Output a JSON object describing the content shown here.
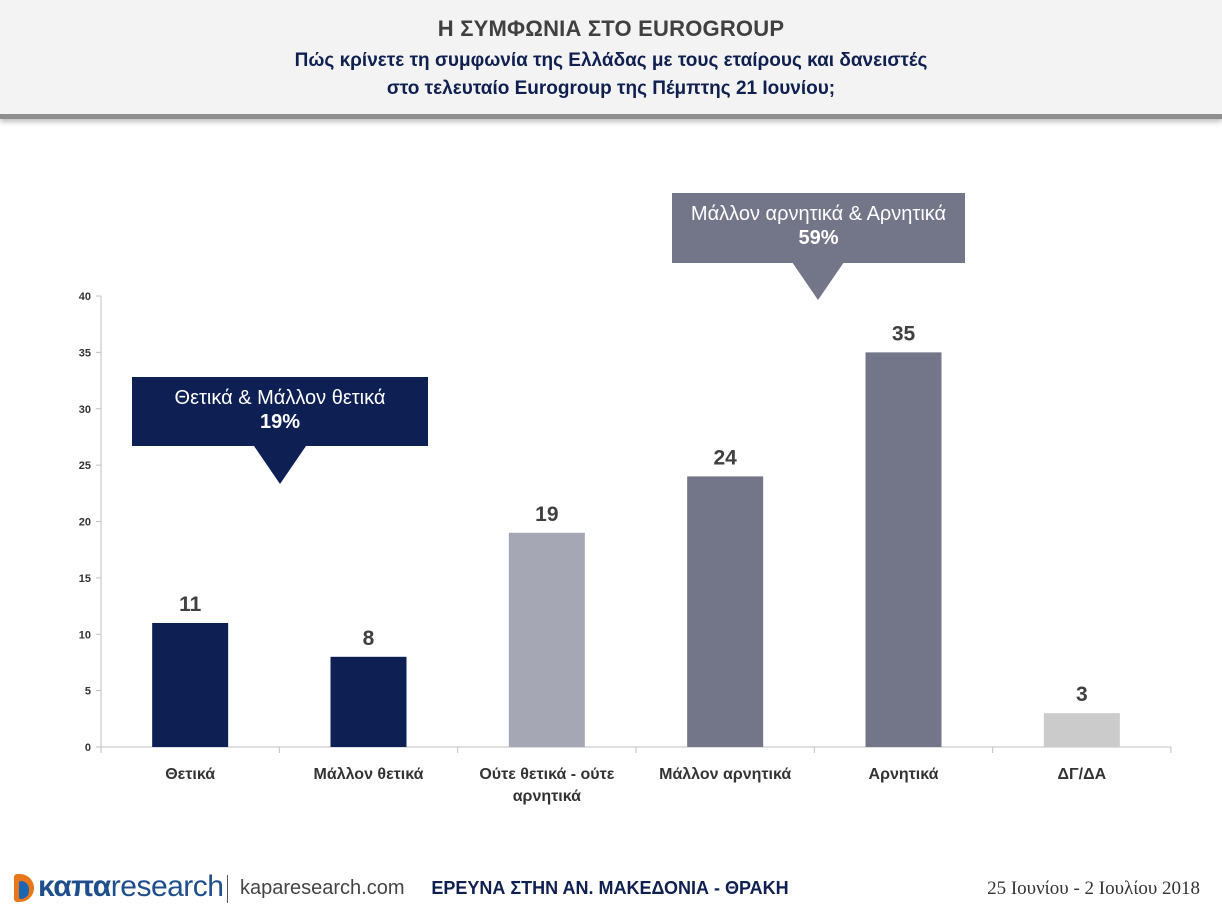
{
  "header": {
    "title": "Η ΣΥΜΦΩΝΙΑ ΣΤΟ EUROGROUP",
    "subtitle_line1": "Πώς κρίνετε τη συμφωνία της Ελλάδας με τους εταίρους και δανειστές",
    "subtitle_line2": "στο τελευταίο Eurogroup της Πέμπτης 21 Ιουνίου;"
  },
  "callouts": {
    "positive": {
      "label": "Θετικά & Μάλλον θετικά",
      "value": "19%",
      "color": "#0e1f53"
    },
    "negative": {
      "label": "Μάλλον αρνητικά & Αρνητικά",
      "value": "59%",
      "color": "#737589"
    }
  },
  "chart_data": {
    "type": "bar",
    "categories": [
      [
        "Θετικά"
      ],
      [
        "Μάλλον θετικά"
      ],
      [
        "Ούτε θετικά - ούτε",
        "αρνητικά"
      ],
      [
        "Μάλλον αρνητικά"
      ],
      [
        "Αρνητικά"
      ],
      [
        "ΔΓ/ΔΑ"
      ]
    ],
    "values": [
      11,
      8,
      19,
      24,
      35,
      3
    ],
    "colors": [
      "#0e1f53",
      "#0e1f53",
      "#a6a7b5",
      "#737589",
      "#737589",
      "#cbcbcb"
    ],
    "ylim": [
      0,
      40
    ],
    "yticks": [
      0,
      5,
      10,
      15,
      20,
      25,
      30,
      35,
      40
    ],
    "grid": false,
    "data_labels": true
  },
  "footer": {
    "logo_bold": "καπα",
    "logo_light": "research",
    "url": "kaparesearch.com",
    "center": "ΕΡΕΥΝΑ ΣΤΗΝ ΑΝ. ΜΑΚΕΔΟΝΙΑ - ΘΡΑΚΗ",
    "dates": "25 Ιουνίου - 2 Ιουλίου 2018"
  },
  "colors": {
    "accent_dark": "#0e1f53",
    "accent_grey": "#737589",
    "logo_orange": "#e8771b",
    "logo_blue": "#1a66b3"
  }
}
